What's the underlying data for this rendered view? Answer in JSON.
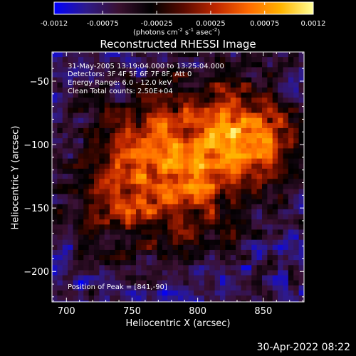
{
  "chart_data": {
    "type": "heatmap",
    "title": "Reconstructed RHESSI Image",
    "xlabel": "Heliocentric X (arcsec)",
    "ylabel": "Heliocentric Y (arcsec)",
    "xlim": [
      689,
      881
    ],
    "ylim": [
      -224,
      -27
    ],
    "x_ticks": [
      700,
      750,
      800,
      850
    ],
    "y_ticks": [
      -50,
      -100,
      -150,
      -200
    ],
    "colorbar": {
      "range": [
        -0.0012,
        0.0012
      ],
      "ticks": [
        "-0.0012",
        "-0.00075",
        "-0.00025",
        "0.00025",
        "0.00075",
        "0.0012"
      ],
      "label": "(photons cm",
      "label_exp1": "-2",
      "label_mid": " s",
      "label_exp2": "-1",
      "label_end": " asec",
      "label_exp3": "-2",
      "label_close": ")",
      "colormap": [
        "#0000ff",
        "#2e1a8a",
        "#3a1030",
        "#000000",
        "#5a0a00",
        "#c02800",
        "#ff6a00",
        "#ffb400",
        "#ffff96"
      ]
    },
    "annotations": [
      "31-May-2005 13:19:04.000 to 13:25:04.000",
      "Detectors: 3F 4F 5F 6F 7F 8F, Att 0",
      "Energy Range: 6.0 - 12.0 keV",
      "Clean     Total counts: 2.50E+04"
    ],
    "peak_label": "Position of Peak = [841,-90]",
    "peak": [
      841,
      -90
    ],
    "timestamp": "30-Apr-2022 08:22"
  }
}
